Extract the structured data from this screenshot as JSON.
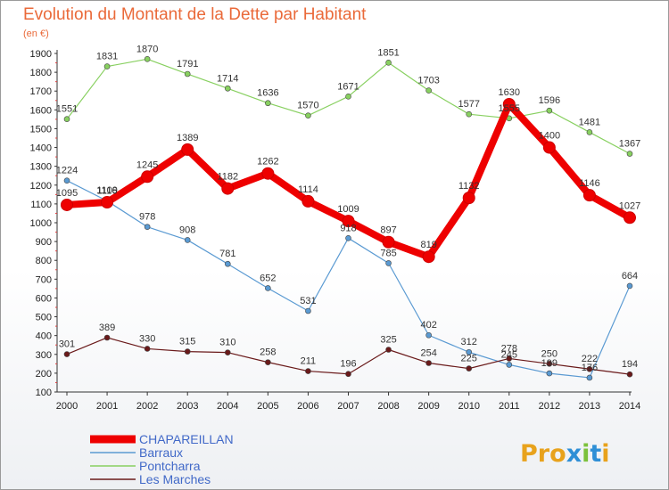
{
  "title": "Evolution du Montant de la Dette par Habitant",
  "subtitle": "(en €)",
  "logo": {
    "text": "Proxiti",
    "colors": [
      "#e8a21c",
      "#e8a21c",
      "#e8a21c",
      "#2f8fd6",
      "#7cc13b",
      "#2f8fd6",
      "#e8a21c"
    ]
  },
  "chart_data": {
    "type": "line",
    "title": "Evolution du Montant de la Dette par Habitant",
    "subtitle": "(en €)",
    "xlabel": "",
    "ylabel": "",
    "x": [
      "2000",
      "2001",
      "2002",
      "2003",
      "2004",
      "2005",
      "2006",
      "2007",
      "2008",
      "2009",
      "2010",
      "2011",
      "2012",
      "2013",
      "2014"
    ],
    "ylim": [
      100,
      1900
    ],
    "yticks": [
      100,
      200,
      300,
      400,
      500,
      600,
      700,
      800,
      900,
      1000,
      1100,
      1200,
      1300,
      1400,
      1500,
      1600,
      1700,
      1800,
      1900
    ],
    "grid": false,
    "legend": "bottom-left",
    "series": [
      {
        "name": "CHAPAREILLAN",
        "color": "#ee0000",
        "emphasis": true,
        "values": [
          1095,
          1109,
          1245,
          1389,
          1182,
          1262,
          1114,
          1009,
          897,
          819,
          1132,
          1630,
          1400,
          1146,
          1027
        ]
      },
      {
        "name": "Barraux",
        "color": "#5a9ad2",
        "emphasis": false,
        "values": [
          1224,
          1116,
          978,
          908,
          781,
          652,
          531,
          918,
          785,
          402,
          312,
          245,
          199,
          176,
          664
        ]
      },
      {
        "name": "Pontcharra",
        "color": "#88d060",
        "emphasis": false,
        "values": [
          1551,
          1831,
          1870,
          1791,
          1714,
          1636,
          1570,
          1671,
          1851,
          1703,
          1577,
          1555,
          1596,
          1481,
          1367
        ]
      },
      {
        "name": "Les Marches",
        "color": "#6a1a1a",
        "emphasis": false,
        "values": [
          301,
          389,
          330,
          315,
          310,
          258,
          211,
          196,
          325,
          254,
          225,
          278,
          250,
          222,
          194
        ]
      }
    ]
  }
}
